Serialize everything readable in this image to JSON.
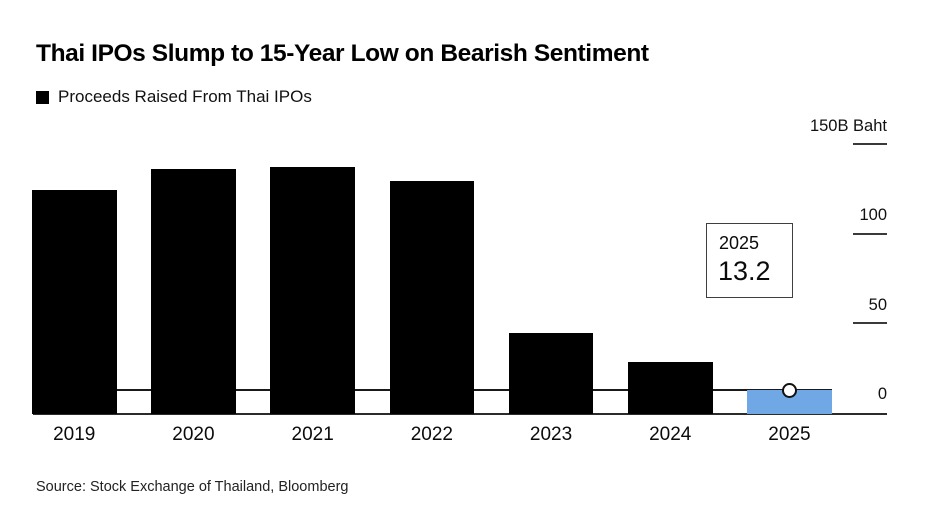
{
  "header": {
    "title": "Thai IPOs Slump to 15-Year Low on Bearish Sentiment"
  },
  "chart_data": {
    "type": "bar",
    "title": "Thai IPOs Slump to 15-Year Low on Bearish Sentiment",
    "series_name": "Proceeds Raised From Thai IPOs",
    "unit": "B Baht",
    "categories": [
      "2019",
      "2020",
      "2021",
      "2022",
      "2023",
      "2024",
      "2025"
    ],
    "values": [
      125,
      137,
      138,
      130,
      45,
      29,
      13.2
    ],
    "ylim": [
      0,
      150
    ],
    "y_ticks": [
      {
        "label": "150B Baht",
        "value": 150
      },
      {
        "label": "100",
        "value": 100
      },
      {
        "label": "50",
        "value": 50
      },
      {
        "label": "0",
        "value": 0
      }
    ],
    "bar_color": "#000000",
    "highlight": {
      "index": 6,
      "color": "#6FA8E4",
      "marker": "circle-white"
    },
    "reference_line": {
      "value": 13.2,
      "color": "#1a1a1a"
    },
    "callout": {
      "line1": "2025",
      "line2": "13.2"
    },
    "legend_position": "top-left",
    "axis_labels_side": "right",
    "grid": "tick-dashes-right"
  },
  "footer": {
    "source": "Source: Stock Exchange of Thailand, Bloomberg"
  }
}
